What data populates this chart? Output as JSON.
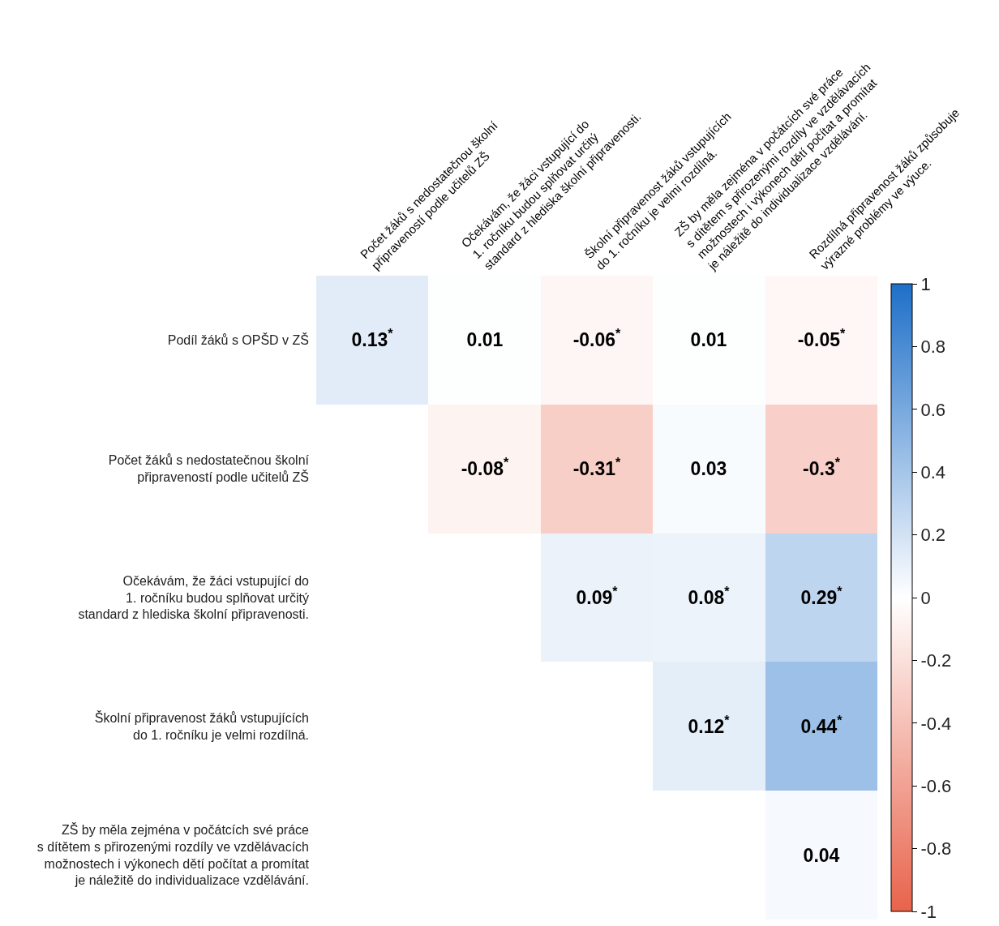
{
  "chart_data": {
    "type": "heatmap",
    "categories": [
      "Počet žáků s nedostatečnou školní\npřipraveností podle učitelů ZŠ",
      "Očekávám, že žáci vstupující do\n1. ročníku budou splňovat určitý\nstandard z hlediska školní připravenosti.",
      "Školní připravenost žáků vstupujících\ndo 1. ročníku je velmi rozdílná.",
      "ZŠ by měla zejména v počátcích své práce\ns dítětem s přirozenými rozdíly ve vzdělávacích\nmožnostech i výkonech dětí počítat a promítat\nje náležitě do individualizace vzdělávání.",
      "Rozdílná připravenost žáků způsobuje\nvýrazné problémy ve výuce."
    ],
    "y_categories": [
      "Podíl žáků s OPŠD v ZŠ",
      "Počet žáků s nedostatečnou školní\npřipraveností podle učitelů ZŠ",
      "Očekávám, že žáci vstupující do\n1. ročníku budou splňovat určitý\nstandard z hlediska školní připravenosti.",
      "Školní připravenost žáků vstupujících\ndo 1. ročníku je velmi rozdílná.",
      "ZŠ by měla zejména v počátcích své práce\ns dítětem s přirozenými rozdíly ve vzdělávacích\nmožnostech i výkonech dětí počítat a promítat\nje náležitě do individualizace vzdělávání."
    ],
    "cells": [
      [
        0.13,
        0.01,
        -0.06,
        0.01,
        -0.05
      ],
      [
        null,
        -0.08,
        -0.31,
        0.03,
        -0.3
      ],
      [
        null,
        null,
        0.09,
        0.08,
        0.29
      ],
      [
        null,
        null,
        null,
        0.12,
        0.44
      ],
      [
        null,
        null,
        null,
        null,
        0.04
      ]
    ],
    "cell_labels": [
      [
        "0.13$^{*}$",
        "0.01",
        "-0.06$^{*}$",
        "0.01",
        "-0.05$^{*}$"
      ],
      [
        null,
        "-0.08$^{*}$",
        "-0.31$^{*}$",
        "0.03",
        "-0.3$^{*}$"
      ],
      [
        null,
        null,
        "0.09$^{*}$",
        "0.08$^{*}$",
        "0.29$^{*}$"
      ],
      [
        null,
        null,
        null,
        "0.12$^{*}$",
        "0.44$^{*}$"
      ],
      [
        null,
        null,
        null,
        null,
        "0.04"
      ]
    ],
    "clim": [
      -1,
      1
    ],
    "cticks": [
      -1,
      -0.8,
      -0.6,
      -0.4,
      -0.2,
      0,
      0.2,
      0.4,
      0.6,
      0.8,
      1
    ]
  }
}
